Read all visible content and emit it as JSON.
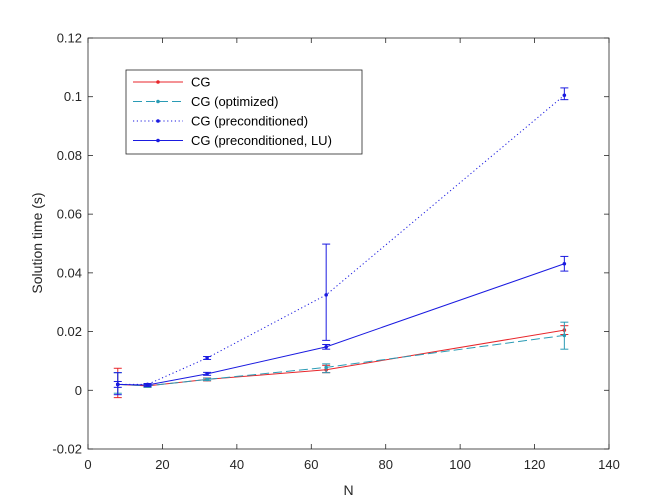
{
  "chart_data": {
    "type": "line",
    "title": "",
    "xlabel": "N",
    "ylabel": "Solution time (s)",
    "xlim": [
      0,
      140
    ],
    "ylim": [
      -0.02,
      0.12
    ],
    "xticks": [
      "0",
      "20",
      "40",
      "60",
      "80",
      "100",
      "120",
      "140"
    ],
    "yticks": [
      "-0.02",
      "0",
      "0.02",
      "0.04",
      "0.06",
      "0.08",
      "0.1",
      "0.12"
    ],
    "grid": false,
    "legend_position": "top-left",
    "x": [
      8,
      16,
      32,
      64,
      128
    ],
    "series": [
      {
        "name": "CG",
        "color": "#e8262b",
        "style": "solid",
        "values": [
          0.002,
          0.0015,
          0.0037,
          0.007,
          0.0205
        ],
        "err_low": [
          0.0045,
          0.0005,
          0.0005,
          0.001,
          0.0015
        ],
        "err_high": [
          0.0055,
          0.0007,
          0.0005,
          0.0015,
          0.0015
        ]
      },
      {
        "name": "CG (optimized)",
        "color": "#2a9bb5",
        "style": "dashed",
        "values": [
          0.002,
          0.0015,
          0.0037,
          0.0078,
          0.0187
        ],
        "err_low": [
          0.003,
          0.0005,
          0.0004,
          0.0018,
          0.0047
        ],
        "err_high": [
          0.004,
          0.0006,
          0.0004,
          0.0012,
          0.0045
        ]
      },
      {
        "name": "CG (preconditioned)",
        "color": "#1a1ae0",
        "style": "dotted",
        "values": [
          0.002,
          0.002,
          0.011,
          0.0325,
          0.1005
        ],
        "err_low": [
          0.001,
          0.0003,
          0.0005,
          0.0155,
          0.0015
        ],
        "err_high": [
          0.001,
          0.0003,
          0.0005,
          0.0173,
          0.0025
        ]
      },
      {
        "name": "CG (preconditioned, LU)",
        "color": "#1a1ae0",
        "style": "solid",
        "values": [
          0.002,
          0.0018,
          0.0056,
          0.0148,
          0.0431
        ],
        "err_low": [
          0.0035,
          0.0005,
          0.0005,
          0.0008,
          0.0025
        ],
        "err_high": [
          0.004,
          0.0005,
          0.0005,
          0.0008,
          0.0025
        ]
      }
    ]
  }
}
